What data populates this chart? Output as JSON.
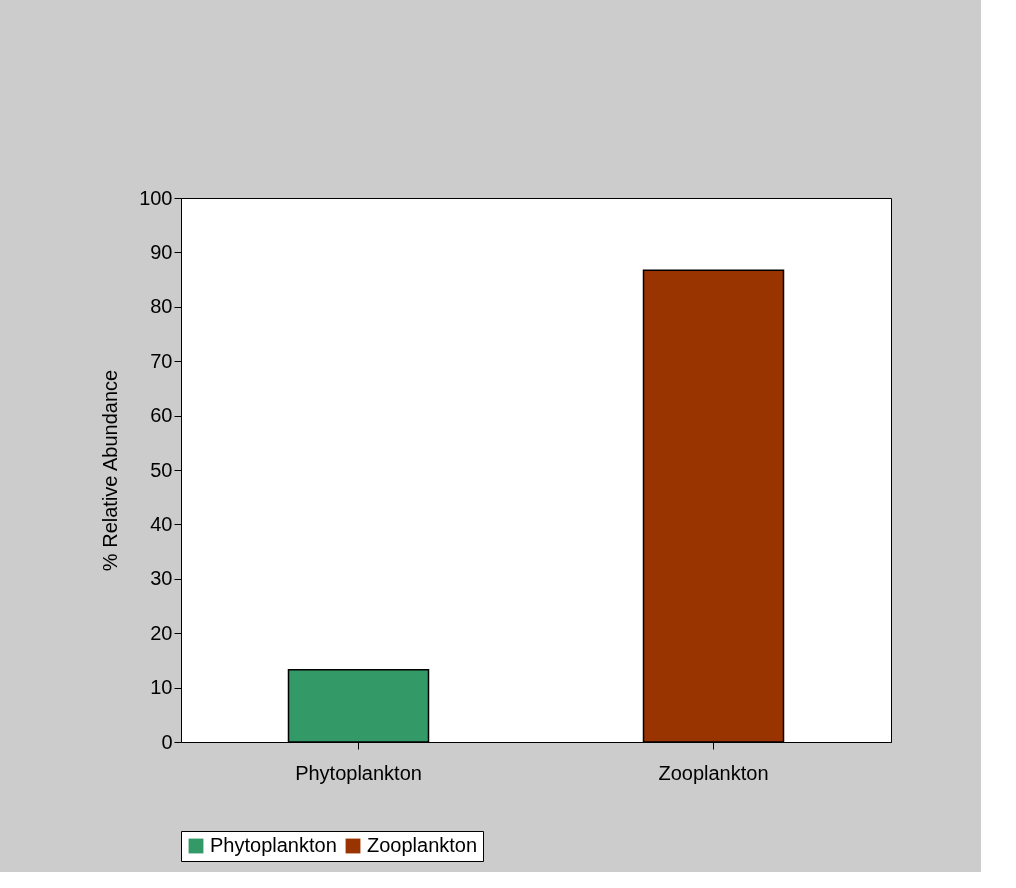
{
  "chart_data": {
    "type": "bar",
    "ylabel": "% Relative Abundance",
    "categories": [
      "Phytoplankton",
      "Zooplankton"
    ],
    "series": [
      {
        "name": "Phytoplankton",
        "color": "#339966",
        "values": [
          13.3,
          null
        ]
      },
      {
        "name": "Zooplankton",
        "color": "#993300",
        "values": [
          null,
          86.7
        ]
      }
    ],
    "ylim": [
      0,
      100
    ],
    "yticks": [
      0,
      10,
      20,
      30,
      40,
      50,
      60,
      70,
      80,
      90,
      100
    ],
    "grid": false,
    "legend": "bottom"
  }
}
